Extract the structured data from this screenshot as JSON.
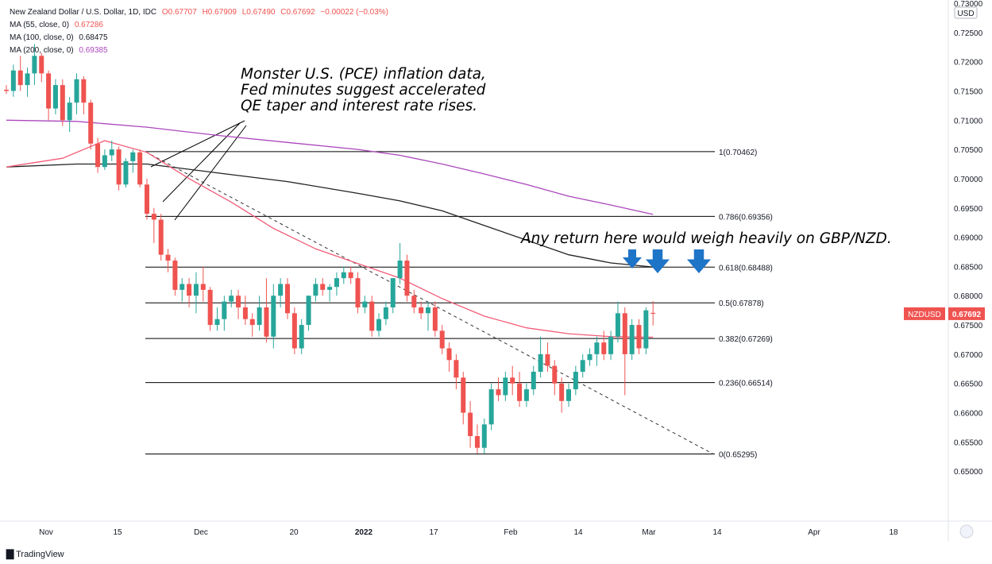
{
  "header": {
    "title": "New Zealand Dollar / U.S. Dollar, 1D, IDC",
    "open": "O0.67707",
    "high": "H0.67909",
    "low": "L0.67490",
    "close": "C0.67692",
    "change": "−0.00022 (−0.03%)",
    "ma55_label": "MA (55, close, 0)",
    "ma55_value": "0.67286",
    "ma100_label": "MA (100, close, 0)",
    "ma100_value": "0.68475",
    "ma200_label": "MA (200, close, 0)",
    "ma200_value": "0.69385"
  },
  "annotations": {
    "pce_line1": "Monster U.S. (PCE) inflation data,",
    "pce_line2": "Fed minutes suggest accelerated",
    "pce_line3": "QE taper and interest rate rises.",
    "return_note": "Any return here would weigh heavily on GBP/NZD."
  },
  "footer": {
    "brand": "TradingView"
  },
  "chart_data": {
    "type": "candlestick",
    "symbol": "NZDUSD",
    "last_price": "0.67692",
    "currency": "USD",
    "ylim": [
      0.645,
      0.73
    ],
    "y_ticks": [
      "0.65000",
      "0.65500",
      "0.66000",
      "0.66500",
      "0.67000",
      "0.67500",
      "0.68000",
      "0.68500",
      "0.69000",
      "0.69500",
      "0.70000",
      "0.70500",
      "0.71000",
      "0.71500",
      "0.72000",
      "0.72500",
      "0.73000"
    ],
    "x_ticks": [
      "Nov",
      "15",
      "Dec",
      "20",
      "2022",
      "17",
      "Feb",
      "14",
      "Mar",
      "14",
      "Apr",
      "18"
    ],
    "colors": {
      "up": "#26a69a",
      "down": "#ef5350",
      "ma55": "#f25c78",
      "ma100": "#222222",
      "ma200": "#ab47bc",
      "arrow": "#1e74c6",
      "label_bg": "#ef5350"
    },
    "fib_levels": [
      {
        "label": "1(0.70462)",
        "value": 0.70462
      },
      {
        "label": "0.786(0.69356)",
        "value": 0.69356
      },
      {
        "label": "0.618(0.68488)",
        "value": 0.68488
      },
      {
        "label": "0.5(0.67878)",
        "value": 0.67878
      },
      {
        "label": "0.382(0.67269)",
        "value": 0.67269
      },
      {
        "label": "0.236(0.66514)",
        "value": 0.66514
      },
      {
        "label": "0(0.65295)",
        "value": 0.65295
      }
    ],
    "candles": [
      [
        0.7152,
        0.716,
        0.7145,
        0.715
      ],
      [
        0.715,
        0.7195,
        0.714,
        0.7185
      ],
      [
        0.7185,
        0.721,
        0.715,
        0.716
      ],
      [
        0.716,
        0.719,
        0.714,
        0.718
      ],
      [
        0.718,
        0.723,
        0.716,
        0.721
      ],
      [
        0.721,
        0.7215,
        0.7165,
        0.718
      ],
      [
        0.718,
        0.7185,
        0.71,
        0.712
      ],
      [
        0.712,
        0.717,
        0.711,
        0.716
      ],
      [
        0.716,
        0.717,
        0.709,
        0.71
      ],
      [
        0.71,
        0.714,
        0.708,
        0.713
      ],
      [
        0.713,
        0.718,
        0.711,
        0.717
      ],
      [
        0.717,
        0.7175,
        0.711,
        0.713
      ],
      [
        0.713,
        0.7135,
        0.705,
        0.706
      ],
      [
        0.706,
        0.707,
        0.701,
        0.702
      ],
      [
        0.702,
        0.705,
        0.7015,
        0.704
      ],
      [
        0.704,
        0.7065,
        0.703,
        0.705
      ],
      [
        0.705,
        0.7055,
        0.698,
        0.699
      ],
      [
        0.699,
        0.7035,
        0.6985,
        0.703
      ],
      [
        0.703,
        0.705,
        0.701,
        0.7045
      ],
      [
        0.7045,
        0.705,
        0.6985,
        0.699
      ],
      [
        0.699,
        0.7,
        0.693,
        0.694
      ],
      [
        0.694,
        0.695,
        0.689,
        0.693
      ],
      [
        0.693,
        0.694,
        0.686,
        0.687
      ],
      [
        0.687,
        0.688,
        0.684,
        0.686
      ],
      [
        0.686,
        0.6865,
        0.68,
        0.681
      ],
      [
        0.681,
        0.683,
        0.679,
        0.682
      ],
      [
        0.682,
        0.683,
        0.678,
        0.68
      ],
      [
        0.68,
        0.684,
        0.677,
        0.682
      ],
      [
        0.682,
        0.685,
        0.679,
        0.681
      ],
      [
        0.681,
        0.6815,
        0.674,
        0.675
      ],
      [
        0.675,
        0.678,
        0.674,
        0.676
      ],
      [
        0.676,
        0.68,
        0.674,
        0.679
      ],
      [
        0.679,
        0.681,
        0.678,
        0.68
      ],
      [
        0.68,
        0.681,
        0.676,
        0.678
      ],
      [
        0.678,
        0.68,
        0.675,
        0.676
      ],
      [
        0.676,
        0.677,
        0.673,
        0.675
      ],
      [
        0.675,
        0.68,
        0.674,
        0.678
      ],
      [
        0.678,
        0.683,
        0.672,
        0.673
      ],
      [
        0.673,
        0.682,
        0.671,
        0.68
      ],
      [
        0.68,
        0.683,
        0.678,
        0.682
      ],
      [
        0.682,
        0.683,
        0.676,
        0.677
      ],
      [
        0.677,
        0.678,
        0.67,
        0.671
      ],
      [
        0.671,
        0.676,
        0.67,
        0.675
      ],
      [
        0.675,
        0.68,
        0.674,
        0.68
      ],
      [
        0.68,
        0.683,
        0.679,
        0.682
      ],
      [
        0.682,
        0.683,
        0.68,
        0.681
      ],
      [
        0.681,
        0.682,
        0.679,
        0.6815
      ],
      [
        0.6815,
        0.684,
        0.68,
        0.683
      ],
      [
        0.683,
        0.685,
        0.682,
        0.684
      ],
      [
        0.684,
        0.685,
        0.682,
        0.683
      ],
      [
        0.683,
        0.684,
        0.677,
        0.678
      ],
      [
        0.678,
        0.68,
        0.677,
        0.679
      ],
      [
        0.679,
        0.68,
        0.673,
        0.674
      ],
      [
        0.674,
        0.677,
        0.673,
        0.676
      ],
      [
        0.676,
        0.679,
        0.675,
        0.678
      ],
      [
        0.678,
        0.683,
        0.677,
        0.683
      ],
      [
        0.683,
        0.689,
        0.682,
        0.686
      ],
      [
        0.686,
        0.687,
        0.679,
        0.68
      ],
      [
        0.68,
        0.681,
        0.677,
        0.678
      ],
      [
        0.678,
        0.679,
        0.676,
        0.677
      ],
      [
        0.677,
        0.679,
        0.674,
        0.678
      ],
      [
        0.678,
        0.679,
        0.673,
        0.674
      ],
      [
        0.674,
        0.675,
        0.67,
        0.671
      ],
      [
        0.671,
        0.672,
        0.667,
        0.669
      ],
      [
        0.669,
        0.67,
        0.664,
        0.666
      ],
      [
        0.666,
        0.667,
        0.658,
        0.66
      ],
      [
        0.66,
        0.662,
        0.654,
        0.656
      ],
      [
        0.656,
        0.658,
        0.653,
        0.654
      ],
      [
        0.654,
        0.659,
        0.653,
        0.658
      ],
      [
        0.658,
        0.665,
        0.657,
        0.664
      ],
      [
        0.664,
        0.666,
        0.662,
        0.663
      ],
      [
        0.663,
        0.667,
        0.662,
        0.666
      ],
      [
        0.666,
        0.668,
        0.663,
        0.665
      ],
      [
        0.665,
        0.667,
        0.661,
        0.662
      ],
      [
        0.662,
        0.665,
        0.661,
        0.664
      ],
      [
        0.664,
        0.668,
        0.663,
        0.667
      ],
      [
        0.667,
        0.673,
        0.666,
        0.67
      ],
      [
        0.67,
        0.672,
        0.667,
        0.668
      ],
      [
        0.668,
        0.669,
        0.663,
        0.665
      ],
      [
        0.665,
        0.666,
        0.66,
        0.662
      ],
      [
        0.662,
        0.665,
        0.661,
        0.664
      ],
      [
        0.664,
        0.668,
        0.663,
        0.667
      ],
      [
        0.667,
        0.67,
        0.666,
        0.669
      ],
      [
        0.669,
        0.671,
        0.668,
        0.67
      ],
      [
        0.67,
        0.673,
        0.668,
        0.672
      ],
      [
        0.672,
        0.674,
        0.669,
        0.67
      ],
      [
        0.67,
        0.674,
        0.669,
        0.673
      ],
      [
        0.673,
        0.679,
        0.672,
        0.677
      ],
      [
        0.677,
        0.678,
        0.663,
        0.67
      ],
      [
        0.67,
        0.676,
        0.669,
        0.675
      ],
      [
        0.675,
        0.676,
        0.67,
        0.671
      ],
      [
        0.671,
        0.678,
        0.67,
        0.6775
      ],
      [
        0.67707,
        0.67909,
        0.6749,
        0.67692
      ]
    ],
    "ma55": [
      [
        0,
        0.702
      ],
      [
        8,
        0.7035
      ],
      [
        14,
        0.7065
      ],
      [
        20,
        0.7045
      ],
      [
        26,
        0.7
      ],
      [
        32,
        0.696
      ],
      [
        38,
        0.6915
      ],
      [
        44,
        0.688
      ],
      [
        50,
        0.6855
      ],
      [
        56,
        0.683
      ],
      [
        62,
        0.6795
      ],
      [
        68,
        0.6765
      ],
      [
        74,
        0.6745
      ],
      [
        80,
        0.6735
      ],
      [
        86,
        0.673
      ],
      [
        92,
        0.6729
      ]
    ],
    "ma100": [
      [
        0,
        0.702
      ],
      [
        10,
        0.7025
      ],
      [
        20,
        0.7025
      ],
      [
        30,
        0.701
      ],
      [
        40,
        0.6995
      ],
      [
        50,
        0.6975
      ],
      [
        56,
        0.6962
      ],
      [
        62,
        0.6945
      ],
      [
        68,
        0.692
      ],
      [
        74,
        0.6895
      ],
      [
        80,
        0.687
      ],
      [
        86,
        0.6856
      ],
      [
        92,
        0.6849
      ]
    ],
    "ma200": [
      [
        0,
        0.71
      ],
      [
        10,
        0.7098
      ],
      [
        20,
        0.7088
      ],
      [
        30,
        0.7074
      ],
      [
        40,
        0.7062
      ],
      [
        50,
        0.705
      ],
      [
        56,
        0.704
      ],
      [
        62,
        0.7025
      ],
      [
        68,
        0.7008
      ],
      [
        74,
        0.699
      ],
      [
        80,
        0.697
      ],
      [
        86,
        0.6955
      ],
      [
        92,
        0.6939
      ]
    ]
  }
}
